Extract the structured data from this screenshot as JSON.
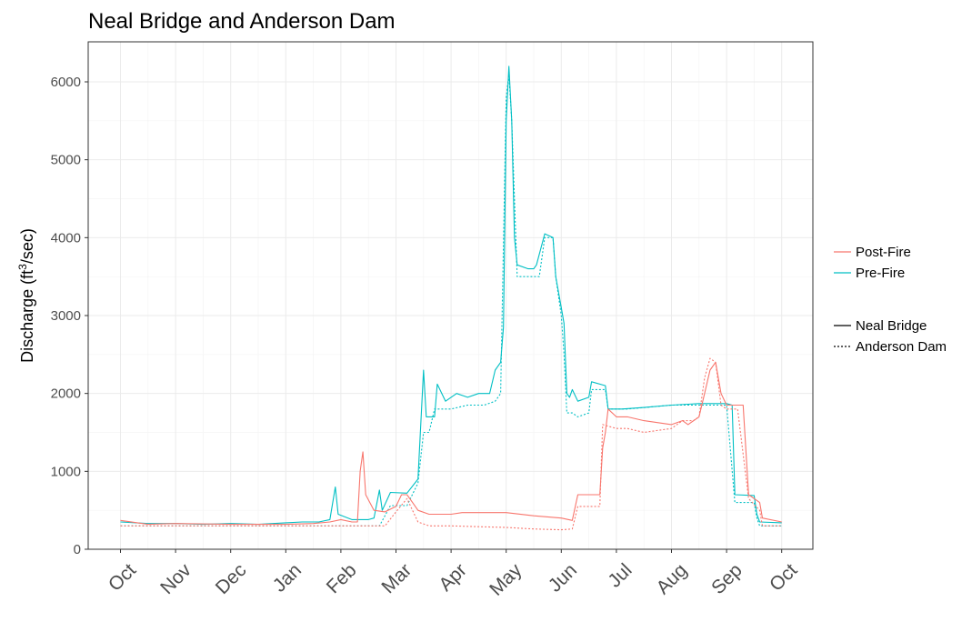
{
  "chart_data": {
    "type": "line",
    "title": "Neal Bridge and Anderson Dam",
    "ylabel_main": "Discharge (ft",
    "ylabel_sup": "3",
    "ylabel_end": "/sec)",
    "xlabel": "",
    "ylim": [
      0,
      6400
    ],
    "y_ticks": [
      0,
      1000,
      2000,
      3000,
      4000,
      5000,
      6000
    ],
    "x_ticks": [
      "Oct",
      "Nov",
      "Dec",
      "Jan",
      "Feb",
      "Mar",
      "Apr",
      "May",
      "Jun",
      "Jul",
      "Aug",
      "Sep",
      "Oct"
    ],
    "x_unit": "month index from Oct (0 = Oct 1, 12 = next Oct 1)",
    "grid": true,
    "legend_position": "right",
    "legend_color": [
      {
        "label": "Post-Fire",
        "color": "#F8766D"
      },
      {
        "label": "Pre-Fire",
        "color": "#00BFC4"
      }
    ],
    "legend_linetype": [
      {
        "label": "Neal Bridge",
        "dash": "solid"
      },
      {
        "label": "Anderson Dam",
        "dash": "dotted"
      }
    ],
    "series": [
      {
        "name": "Pre-Fire Neal Bridge",
        "color": "#00BFC4",
        "dash": "solid",
        "points": [
          [
            0,
            350
          ],
          [
            0.5,
            330
          ],
          [
            1,
            330
          ],
          [
            1.5,
            320
          ],
          [
            2,
            330
          ],
          [
            2.5,
            320
          ],
          [
            3,
            340
          ],
          [
            3.3,
            350
          ],
          [
            3.6,
            350
          ],
          [
            3.8,
            380
          ],
          [
            3.9,
            800
          ],
          [
            3.95,
            450
          ],
          [
            4.2,
            380
          ],
          [
            4.5,
            380
          ],
          [
            4.6,
            400
          ],
          [
            4.7,
            760
          ],
          [
            4.75,
            500
          ],
          [
            4.9,
            730
          ],
          [
            5.2,
            720
          ],
          [
            5.4,
            900
          ],
          [
            5.5,
            2300
          ],
          [
            5.55,
            1700
          ],
          [
            5.7,
            1700
          ],
          [
            5.75,
            2120
          ],
          [
            5.9,
            1900
          ],
          [
            6.1,
            2000
          ],
          [
            6.3,
            1950
          ],
          [
            6.5,
            2000
          ],
          [
            6.7,
            2000
          ],
          [
            6.8,
            2300
          ],
          [
            6.9,
            2400
          ],
          [
            6.95,
            2850
          ],
          [
            7.0,
            5500
          ],
          [
            7.05,
            6200
          ],
          [
            7.1,
            5500
          ],
          [
            7.15,
            4000
          ],
          [
            7.2,
            3650
          ],
          [
            7.4,
            3600
          ],
          [
            7.5,
            3600
          ],
          [
            7.55,
            3650
          ],
          [
            7.7,
            4050
          ],
          [
            7.85,
            4000
          ],
          [
            7.9,
            3500
          ],
          [
            8.0,
            3100
          ],
          [
            8.05,
            2900
          ],
          [
            8.1,
            2000
          ],
          [
            8.15,
            1950
          ],
          [
            8.2,
            2050
          ],
          [
            8.3,
            1900
          ],
          [
            8.5,
            1950
          ],
          [
            8.55,
            2150
          ],
          [
            8.8,
            2100
          ],
          [
            8.85,
            1800
          ],
          [
            9.1,
            1800
          ],
          [
            9.5,
            1820
          ],
          [
            10,
            1850
          ],
          [
            10.5,
            1870
          ],
          [
            11,
            1870
          ],
          [
            11.1,
            1850
          ],
          [
            11.15,
            700
          ],
          [
            11.5,
            690
          ],
          [
            11.55,
            450
          ],
          [
            11.6,
            350
          ],
          [
            12,
            340
          ]
        ]
      },
      {
        "name": "Pre-Fire Anderson Dam",
        "color": "#00BFC4",
        "dash": "dotted",
        "points": [
          [
            0,
            300
          ],
          [
            1,
            300
          ],
          [
            2,
            300
          ],
          [
            3,
            300
          ],
          [
            4,
            300
          ],
          [
            4.5,
            300
          ],
          [
            4.7,
            300
          ],
          [
            4.9,
            560
          ],
          [
            5.2,
            560
          ],
          [
            5.4,
            850
          ],
          [
            5.5,
            1500
          ],
          [
            5.6,
            1500
          ],
          [
            5.7,
            1800
          ],
          [
            6.0,
            1800
          ],
          [
            6.3,
            1850
          ],
          [
            6.6,
            1850
          ],
          [
            6.8,
            1900
          ],
          [
            6.9,
            2000
          ],
          [
            7.0,
            5800
          ],
          [
            7.05,
            6100
          ],
          [
            7.1,
            5500
          ],
          [
            7.2,
            3500
          ],
          [
            7.5,
            3500
          ],
          [
            7.6,
            3500
          ],
          [
            7.7,
            4000
          ],
          [
            7.85,
            4000
          ],
          [
            7.9,
            3500
          ],
          [
            8.0,
            3000
          ],
          [
            8.05,
            2500
          ],
          [
            8.1,
            1750
          ],
          [
            8.2,
            1750
          ],
          [
            8.3,
            1700
          ],
          [
            8.5,
            1750
          ],
          [
            8.55,
            2050
          ],
          [
            8.8,
            2050
          ],
          [
            8.85,
            1800
          ],
          [
            9.2,
            1800
          ],
          [
            10,
            1850
          ],
          [
            10.5,
            1850
          ],
          [
            11,
            1850
          ],
          [
            11.15,
            600
          ],
          [
            11.5,
            600
          ],
          [
            11.55,
            400
          ],
          [
            11.6,
            300
          ],
          [
            12,
            300
          ]
        ]
      },
      {
        "name": "Post-Fire Neal Bridge",
        "color": "#F8766D",
        "dash": "solid",
        "points": [
          [
            0,
            370
          ],
          [
            0.5,
            320
          ],
          [
            1,
            330
          ],
          [
            2,
            320
          ],
          [
            3,
            320
          ],
          [
            3.5,
            330
          ],
          [
            3.8,
            350
          ],
          [
            4.0,
            380
          ],
          [
            4.2,
            350
          ],
          [
            4.3,
            350
          ],
          [
            4.35,
            1000
          ],
          [
            4.4,
            1250
          ],
          [
            4.45,
            700
          ],
          [
            4.6,
            500
          ],
          [
            4.8,
            480
          ],
          [
            5.0,
            550
          ],
          [
            5.1,
            700
          ],
          [
            5.2,
            700
          ],
          [
            5.3,
            600
          ],
          [
            5.4,
            500
          ],
          [
            5.6,
            450
          ],
          [
            6.0,
            450
          ],
          [
            6.2,
            470
          ],
          [
            6.5,
            470
          ],
          [
            7.0,
            470
          ],
          [
            7.5,
            430
          ],
          [
            8.0,
            400
          ],
          [
            8.2,
            370
          ],
          [
            8.3,
            700
          ],
          [
            8.7,
            700
          ],
          [
            8.75,
            1300
          ],
          [
            8.8,
            1500
          ],
          [
            8.85,
            1800
          ],
          [
            9.0,
            1700
          ],
          [
            9.2,
            1700
          ],
          [
            9.5,
            1650
          ],
          [
            10.0,
            1600
          ],
          [
            10.2,
            1650
          ],
          [
            10.3,
            1600
          ],
          [
            10.5,
            1700
          ],
          [
            10.6,
            2000
          ],
          [
            10.7,
            2300
          ],
          [
            10.8,
            2400
          ],
          [
            10.9,
            2000
          ],
          [
            11.0,
            1850
          ],
          [
            11.1,
            1850
          ],
          [
            11.2,
            1850
          ],
          [
            11.3,
            1850
          ],
          [
            11.4,
            700
          ],
          [
            11.6,
            600
          ],
          [
            11.65,
            400
          ],
          [
            12,
            350
          ]
        ]
      },
      {
        "name": "Post-Fire Anderson Dam",
        "color": "#F8766D",
        "dash": "dotted",
        "points": [
          [
            0,
            300
          ],
          [
            1,
            300
          ],
          [
            2,
            300
          ],
          [
            3,
            300
          ],
          [
            4,
            300
          ],
          [
            4.5,
            300
          ],
          [
            4.8,
            300
          ],
          [
            5.0,
            480
          ],
          [
            5.2,
            650
          ],
          [
            5.4,
            350
          ],
          [
            5.6,
            300
          ],
          [
            6.0,
            300
          ],
          [
            6.5,
            290
          ],
          [
            7.0,
            280
          ],
          [
            7.5,
            260
          ],
          [
            8.0,
            250
          ],
          [
            8.2,
            260
          ],
          [
            8.3,
            550
          ],
          [
            8.7,
            550
          ],
          [
            8.75,
            1600
          ],
          [
            9.0,
            1550
          ],
          [
            9.2,
            1550
          ],
          [
            9.5,
            1500
          ],
          [
            10.0,
            1550
          ],
          [
            10.2,
            1650
          ],
          [
            10.4,
            1650
          ],
          [
            10.5,
            1700
          ],
          [
            10.6,
            2200
          ],
          [
            10.7,
            2450
          ],
          [
            10.8,
            2400
          ],
          [
            10.9,
            1850
          ],
          [
            11.0,
            1800
          ],
          [
            11.2,
            1800
          ],
          [
            11.4,
            650
          ],
          [
            11.6,
            500
          ],
          [
            11.65,
            300
          ],
          [
            12,
            300
          ]
        ]
      }
    ]
  }
}
